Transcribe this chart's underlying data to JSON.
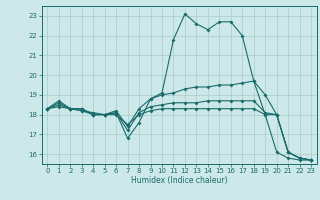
{
  "xlabel": "Humidex (Indice chaleur)",
  "bg_color": "#cce8e8",
  "grid_color": "#aacccc",
  "line_color": "#1a6b6b",
  "xlim": [
    -0.5,
    23.5
  ],
  "ylim": [
    15.5,
    23.5
  ],
  "yticks": [
    16,
    17,
    18,
    19,
    20,
    21,
    22,
    23
  ],
  "xticks": [
    0,
    1,
    2,
    3,
    4,
    5,
    6,
    7,
    8,
    9,
    10,
    11,
    12,
    13,
    14,
    15,
    16,
    17,
    18,
    19,
    20,
    21,
    22,
    23
  ],
  "line1_x": [
    0,
    1,
    2,
    3,
    4,
    5,
    6,
    7,
    8,
    9,
    10,
    11,
    12,
    13,
    14,
    15,
    16,
    17,
    18,
    19,
    20,
    21,
    22,
    23
  ],
  "line1_y": [
    18.3,
    18.7,
    18.3,
    18.3,
    18.0,
    18.0,
    18.1,
    16.8,
    17.6,
    18.8,
    19.1,
    21.8,
    23.1,
    22.6,
    22.3,
    22.7,
    22.7,
    22.0,
    19.7,
    18.0,
    16.1,
    15.8,
    15.7,
    15.7
  ],
  "line2_x": [
    0,
    1,
    2,
    3,
    4,
    5,
    6,
    7,
    8,
    9,
    10,
    11,
    12,
    13,
    14,
    15,
    16,
    17,
    18,
    19,
    20,
    21,
    22,
    23
  ],
  "line2_y": [
    18.3,
    18.6,
    18.3,
    18.3,
    18.0,
    18.0,
    18.2,
    17.4,
    18.3,
    18.8,
    19.0,
    19.1,
    19.3,
    19.4,
    19.4,
    19.5,
    19.5,
    19.6,
    19.7,
    19.0,
    18.0,
    16.1,
    15.8,
    15.7
  ],
  "line3_x": [
    0,
    1,
    2,
    3,
    4,
    5,
    6,
    7,
    8,
    9,
    10,
    11,
    12,
    13,
    14,
    15,
    16,
    17,
    18,
    19,
    20,
    21,
    22,
    23
  ],
  "line3_y": [
    18.3,
    18.5,
    18.3,
    18.2,
    18.1,
    18.0,
    18.1,
    17.2,
    18.1,
    18.4,
    18.5,
    18.6,
    18.6,
    18.6,
    18.7,
    18.7,
    18.7,
    18.7,
    18.7,
    18.1,
    18.0,
    16.1,
    15.8,
    15.7
  ],
  "line4_x": [
    0,
    1,
    2,
    3,
    4,
    5,
    6,
    7,
    8,
    9,
    10,
    11,
    12,
    13,
    14,
    15,
    16,
    17,
    18,
    19,
    20,
    21,
    22,
    23
  ],
  "line4_y": [
    18.3,
    18.4,
    18.3,
    18.2,
    18.0,
    18.0,
    18.0,
    17.5,
    18.0,
    18.2,
    18.3,
    18.3,
    18.3,
    18.3,
    18.3,
    18.3,
    18.3,
    18.3,
    18.3,
    18.0,
    18.0,
    16.1,
    15.8,
    15.7
  ]
}
